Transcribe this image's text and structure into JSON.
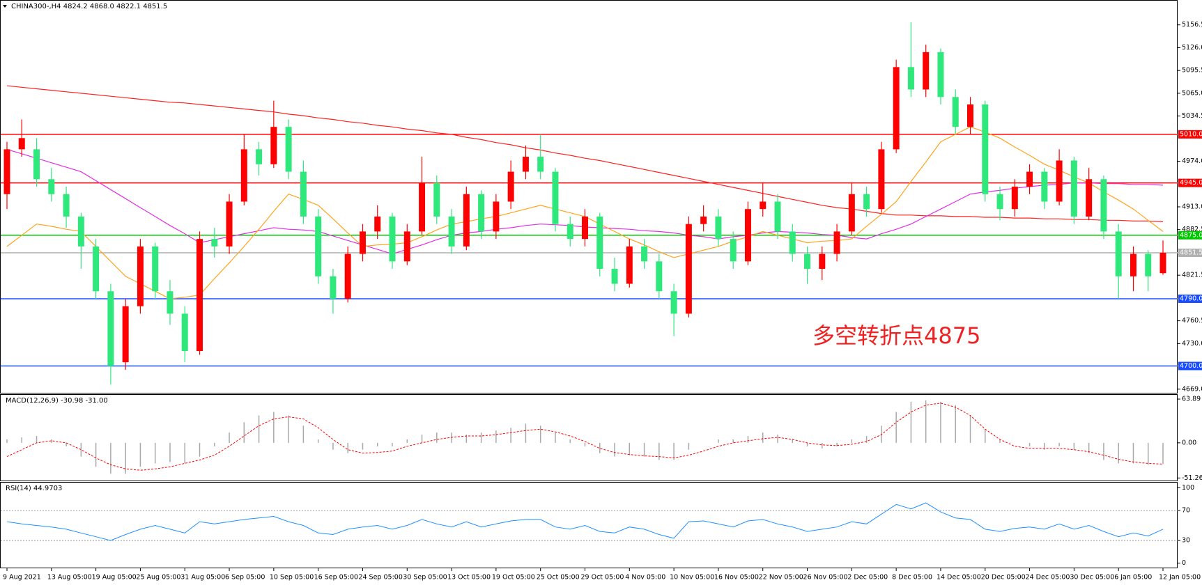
{
  "chart_data": [
    {
      "type": "candlestick",
      "title": "CHINA300-,H4  4824.2 4868.0 4822.1 4851.5",
      "categories": [
        "9 Aug 2021",
        null,
        null,
        "13 Aug 05:00",
        null,
        null,
        "19 Aug 05:00",
        null,
        null,
        "25 Aug 05:00",
        null,
        null,
        "31 Aug 05:00",
        null,
        null,
        "6 Sep 05:00",
        null,
        null,
        "10 Sep 05:00",
        null,
        null,
        "16 Sep 05:00",
        null,
        null,
        "24 Sep 05:00",
        null,
        null,
        "30 Sep 05:00",
        null,
        null,
        "13 Oct 05:00",
        null,
        null,
        "19 Oct 05:00",
        null,
        null,
        "25 Oct 05:00",
        null,
        null,
        "29 Oct 05:00",
        null,
        null,
        "4 Nov 05:00",
        null,
        null,
        "10 Nov 05:00",
        null,
        null,
        "16 Nov 05:00",
        null,
        null,
        "22 Nov 05:00",
        null,
        null,
        "26 Nov 05:00",
        null,
        null,
        "2 Dec 05:00",
        null,
        null,
        "8 Dec 05:00",
        null,
        null,
        "14 Dec 05:00",
        null,
        null,
        "20 Dec 05:00",
        null,
        null,
        "24 Dec 05:00",
        null,
        null,
        "30 Dec 05:00",
        null,
        null,
        "6 Jan 05:00",
        null,
        null,
        "12 Jan 05:00"
      ],
      "open": [
        4930,
        4990,
        4990,
        4950,
        4930,
        4900,
        4860,
        4800,
        4705,
        4780,
        4860,
        4800,
        4770,
        4720,
        4870,
        4860,
        4920,
        4990,
        4970,
        5020,
        4960,
        4900,
        4820,
        4790,
        4850,
        4880,
        4900,
        4840,
        4880,
        4945,
        4900,
        4860,
        4930,
        4880,
        4920,
        4960,
        4980,
        4960,
        4890,
        4870,
        4900,
        4830,
        4810,
        4860,
        4840,
        4800,
        4770,
        4890,
        4900,
        4870,
        4840,
        4910,
        4920,
        4880,
        4850,
        4830,
        4850,
        4880,
        4930,
        4910,
        4990,
        5100,
        5070,
        5120,
        5060,
        5020,
        5050,
        4930,
        4910,
        4940,
        4960,
        4920,
        4975,
        4900,
        4950,
        4880,
        4820,
        4850,
        4824.2
      ],
      "high": [
        5000,
        5030,
        5005,
        4965,
        4940,
        4905,
        4870,
        4810,
        4790,
        4870,
        4865,
        4815,
        4780,
        4880,
        4885,
        4930,
        5010,
        5000,
        5055,
        5030,
        4975,
        4910,
        4830,
        4860,
        4890,
        4915,
        4905,
        4890,
        4980,
        4955,
        4910,
        4940,
        4935,
        4930,
        4975,
        4995,
        5010,
        4965,
        4900,
        4910,
        4905,
        4845,
        4870,
        4870,
        4850,
        4810,
        4900,
        4915,
        4910,
        4880,
        4920,
        4945,
        4930,
        4890,
        4860,
        4860,
        4890,
        4945,
        4940,
        5000,
        5110,
        5160,
        5130,
        5125,
        5070,
        5060,
        5055,
        4940,
        4950,
        4970,
        4965,
        4990,
        4980,
        4965,
        4955,
        4890,
        4860,
        4855,
        4868
      ],
      "low": [
        4910,
        4980,
        4940,
        4920,
        4885,
        4830,
        4790,
        4675,
        4695,
        4770,
        4790,
        4755,
        4705,
        4715,
        4845,
        4850,
        4915,
        4955,
        4965,
        4950,
        4890,
        4810,
        4770,
        4785,
        4840,
        4870,
        4830,
        4835,
        4875,
        4890,
        4850,
        4855,
        4870,
        4870,
        4910,
        4950,
        4950,
        4880,
        4860,
        4860,
        4820,
        4800,
        4805,
        4830,
        4790,
        4740,
        4765,
        4880,
        4860,
        4830,
        4835,
        4900,
        4870,
        4840,
        4810,
        4815,
        4840,
        4875,
        4900,
        4905,
        4985,
        5060,
        5060,
        5050,
        5010,
        5010,
        4920,
        4895,
        4900,
        4930,
        4910,
        4915,
        4890,
        4895,
        4870,
        4790,
        4800,
        4800,
        4822.1
      ],
      "close": [
        4990,
        5005,
        4950,
        4930,
        4900,
        4860,
        4800,
        4700,
        4780,
        4860,
        4800,
        4770,
        4720,
        4870,
        4860,
        4920,
        4990,
        4970,
        5020,
        4960,
        4900,
        4820,
        4790,
        4850,
        4880,
        4900,
        4840,
        4880,
        4945,
        4900,
        4860,
        4930,
        4880,
        4920,
        4960,
        4980,
        4960,
        4890,
        4870,
        4900,
        4830,
        4810,
        4860,
        4840,
        4800,
        4770,
        4890,
        4900,
        4870,
        4840,
        4910,
        4920,
        4880,
        4850,
        4830,
        4850,
        4880,
        4930,
        4910,
        4990,
        5100,
        5070,
        5120,
        5060,
        5020,
        5050,
        4930,
        4910,
        4940,
        4960,
        4920,
        4975,
        4900,
        4950,
        4880,
        4820,
        4850,
        4820,
        4851.5
      ],
      "up_color": "#ff0000",
      "down_color": "#2ee87c",
      "series": [
        {
          "color": "#ff2020",
          "values": [
            5075,
            5073,
            5071,
            5069,
            5067,
            5065,
            5063,
            5061,
            5059,
            5057,
            5055,
            5053,
            5052,
            5050,
            5048,
            5046,
            5044,
            5042,
            5040,
            5037,
            5035,
            5032,
            5030,
            5027,
            5025,
            5022,
            5020,
            5017,
            5015,
            5012,
            5010,
            5006,
            5003,
            4999,
            4996,
            4992,
            4989,
            4985,
            4982,
            4978,
            4975,
            4971,
            4967,
            4963,
            4959,
            4955,
            4951,
            4947,
            4943,
            4939,
            4935,
            4931,
            4927,
            4923,
            4919,
            4915,
            4912,
            4910,
            4907,
            4904,
            4902,
            4902,
            4901,
            4901,
            4900,
            4900,
            4899,
            4899,
            4898,
            4898,
            4897,
            4897,
            4896,
            4896,
            4895,
            4895,
            4894,
            4894,
            4893
          ]
        },
        {
          "color": "#e22ee2",
          "values": [
            4990,
            4984,
            4978,
            4972,
            4966,
            4960,
            4948,
            4936,
            4924,
            4912,
            4900,
            4888,
            4877,
            4865,
            4869,
            4873,
            4877,
            4881,
            4885,
            4883,
            4882,
            4880,
            4874,
            4868,
            4862,
            4856,
            4850,
            4856,
            4862,
            4869,
            4875,
            4878,
            4880,
            4883,
            4885,
            4888,
            4890,
            4889,
            4888,
            4886,
            4885,
            4884,
            4883,
            4881,
            4880,
            4878,
            4875,
            4873,
            4870,
            4873,
            4875,
            4878,
            4880,
            4879,
            4878,
            4876,
            4875,
            4872,
            4870,
            4877,
            4883,
            4890,
            4900,
            4910,
            4920,
            4930,
            4933,
            4935,
            4938,
            4940,
            4942,
            4943,
            4945,
            4945,
            4944,
            4944,
            4943,
            4943,
            4942
          ]
        },
        {
          "color": "#ffa31a",
          "values": [
            4860,
            4875,
            4890,
            4887,
            4883,
            4880,
            4860,
            4840,
            4820,
            4810,
            4800,
            4790,
            4792,
            4795,
            4817,
            4838,
            4860,
            4883,
            4907,
            4930,
            4923,
            4915,
            4897,
            4878,
            4860,
            4862,
            4863,
            4865,
            4873,
            4882,
            4890,
            4893,
            4897,
            4900,
            4905,
            4910,
            4915,
            4910,
            4905,
            4900,
            4890,
            4880,
            4870,
            4862,
            4853,
            4845,
            4850,
            4855,
            4860,
            4867,
            4873,
            4880,
            4875,
            4870,
            4865,
            4867,
            4868,
            4870,
            4887,
            4903,
            4920,
            4947,
            4973,
            5000,
            5010,
            5020,
            5013,
            5005,
            4993,
            4982,
            4970,
            4962,
            4953,
            4945,
            4933,
            4922,
            4910,
            4895,
            4880
          ]
        }
      ],
      "levels": [
        {
          "value": 5010,
          "label": "5010.0",
          "color": "#ff0000"
        },
        {
          "value": 4945,
          "label": "4945.0",
          "color": "#ff0000"
        },
        {
          "value": 4875,
          "label": "4875.0",
          "color": "#00c800"
        },
        {
          "value": 4851.5,
          "label": "4851.5",
          "color": "#b0b0b0"
        },
        {
          "value": 4790,
          "label": "4790.0",
          "color": "#1a4cff"
        },
        {
          "value": 4700,
          "label": "4700.0",
          "color": "#1a4cff"
        }
      ],
      "annotation": "多空转折点4875",
      "annotation_color": "#ee2222",
      "ylim": [
        4666,
        5187
      ],
      "yticks": [
        5156.5,
        {
          "value": 5126,
          "label": "5126.0"
        },
        5095.5,
        {
          "value": 5065,
          "label": "5065.0"
        },
        5034.5,
        {
          "value": 4974,
          "label": "4974.0"
        },
        {
          "value": 4913,
          "label": "4913.0"
        },
        4882.5,
        4821.5,
        4760.5,
        {
          "value": 4730,
          "label": "4730.0"
        },
        {
          "value": 4669,
          "label": "4669.0"
        }
      ]
    },
    {
      "type": "macd",
      "title": "MACD(12,26,9) -30.98 -31.00",
      "histogram": [
        5,
        8,
        10,
        5,
        -5,
        -20,
        -35,
        -45,
        -45,
        -35,
        -30,
        -28,
        -30,
        -20,
        -5,
        15,
        30,
        40,
        45,
        40,
        25,
        5,
        -10,
        -15,
        -10,
        -5,
        -5,
        5,
        12,
        15,
        15,
        12,
        15,
        18,
        22,
        28,
        25,
        15,
        5,
        -5,
        -15,
        -20,
        -18,
        -20,
        -25,
        -25,
        -10,
        0,
        5,
        5,
        10,
        15,
        12,
        5,
        -5,
        -8,
        -5,
        5,
        10,
        25,
        45,
        60,
        62,
        60,
        55,
        40,
        20,
        5,
        0,
        -5,
        -10,
        -5,
        -10,
        -15,
        -25,
        -30,
        -30,
        -32,
        -30.98
      ],
      "signal": [
        -20,
        -10,
        0,
        3,
        0,
        -10,
        -22,
        -32,
        -38,
        -40,
        -38,
        -35,
        -30,
        -25,
        -18,
        -5,
        10,
        25,
        35,
        38,
        35,
        22,
        5,
        -10,
        -15,
        -14,
        -12,
        -5,
        0,
        5,
        8,
        10,
        10,
        12,
        15,
        18,
        20,
        16,
        10,
        2,
        -8,
        -14,
        -17,
        -19,
        -20,
        -22,
        -18,
        -12,
        -5,
        0,
        3,
        6,
        8,
        5,
        0,
        -3,
        -4,
        -2,
        2,
        12,
        30,
        45,
        55,
        58,
        52,
        40,
        20,
        5,
        -5,
        -8,
        -8,
        -8,
        -10,
        -13,
        -18,
        -24,
        -28,
        -30,
        -31.0
      ],
      "histogram_color": "#a8a8a8",
      "signal_color": "#ff0000",
      "ylim": [
        -55,
        69
      ],
      "yticks": [
        63.89,
        {
          "value": 0,
          "label": "0.00"
        },
        -51.26
      ]
    },
    {
      "type": "line",
      "title": "RSI(14) 44.9703",
      "values": [
        55,
        52,
        50,
        48,
        45,
        40,
        35,
        30,
        38,
        45,
        50,
        45,
        40,
        55,
        52,
        55,
        58,
        60,
        62,
        55,
        50,
        40,
        38,
        45,
        48,
        50,
        45,
        50,
        58,
        52,
        48,
        55,
        48,
        52,
        56,
        58,
        58,
        48,
        45,
        50,
        42,
        40,
        48,
        45,
        38,
        33,
        55,
        56,
        52,
        48,
        56,
        58,
        52,
        48,
        42,
        45,
        48,
        55,
        52,
        65,
        78,
        72,
        80,
        68,
        60,
        58,
        45,
        42,
        46,
        48,
        45,
        52,
        45,
        50,
        42,
        35,
        40,
        36,
        44.9703
      ],
      "color": "#1e90ff",
      "levels": [
        70,
        30
      ],
      "ylim": [
        -6,
        106
      ],
      "yticks": [
        100,
        70,
        30,
        0
      ]
    }
  ]
}
